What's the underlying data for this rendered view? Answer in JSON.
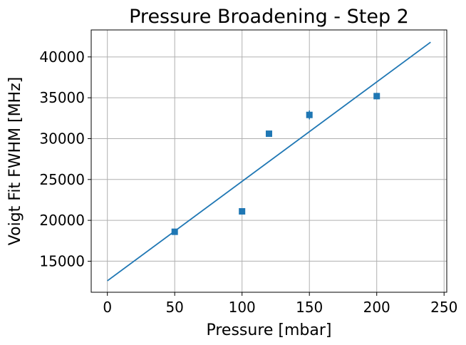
{
  "chart_data": {
    "type": "scatter",
    "title": "Pressure Broadening - Step 2",
    "xlabel": "Pressure [mbar]",
    "ylabel": "Voigt Fit FWHM [MHz]",
    "xlim": [
      -12,
      252
    ],
    "ylim": [
      11200,
      43300
    ],
    "xticks": [
      0,
      50,
      100,
      150,
      200,
      250
    ],
    "yticks": [
      15000,
      20000,
      25000,
      30000,
      35000,
      40000
    ],
    "grid": true,
    "colors": {
      "series": "#1f77b4"
    },
    "series": [
      {
        "type": "scatter",
        "marker": "square",
        "x": [
          50,
          100,
          120,
          150,
          200
        ],
        "y": [
          18600,
          21100,
          30600,
          32900,
          35200
        ],
        "yerr": [
          150,
          150,
          150,
          550,
          400
        ]
      },
      {
        "type": "line",
        "x": [
          0,
          240
        ],
        "y": [
          12600,
          41800
        ]
      }
    ]
  }
}
